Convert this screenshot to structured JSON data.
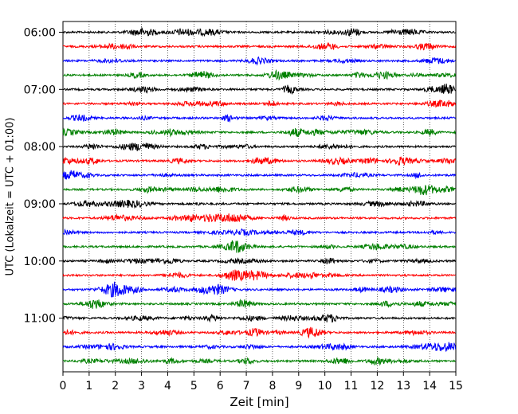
{
  "chart_data": {
    "type": "line",
    "title": "",
    "xlabel": "Zeit  [min]",
    "ylabel": "UTC (Lokalzeit = UTC + 01:00)",
    "xlim": [
      0,
      15
    ],
    "xticks": [
      "0",
      "1",
      "2",
      "3",
      "4",
      "5",
      "6",
      "7",
      "8",
      "9",
      "10",
      "11",
      "12",
      "13",
      "14",
      "15"
    ],
    "ytick_labels": [
      "06:00",
      "07:00",
      "08:00",
      "09:00",
      "10:00",
      "11:00"
    ],
    "traces_per_hour": 4,
    "trace_count": 24,
    "trace_colors": [
      "#000000",
      "#ff0000",
      "#0000ff",
      "#008000"
    ],
    "vertical_grid": true,
    "grid_style": "dotted",
    "description_series": "seismogram helicorder traces, 15-minute rows from 06:00 to 11:45 UTC"
  }
}
